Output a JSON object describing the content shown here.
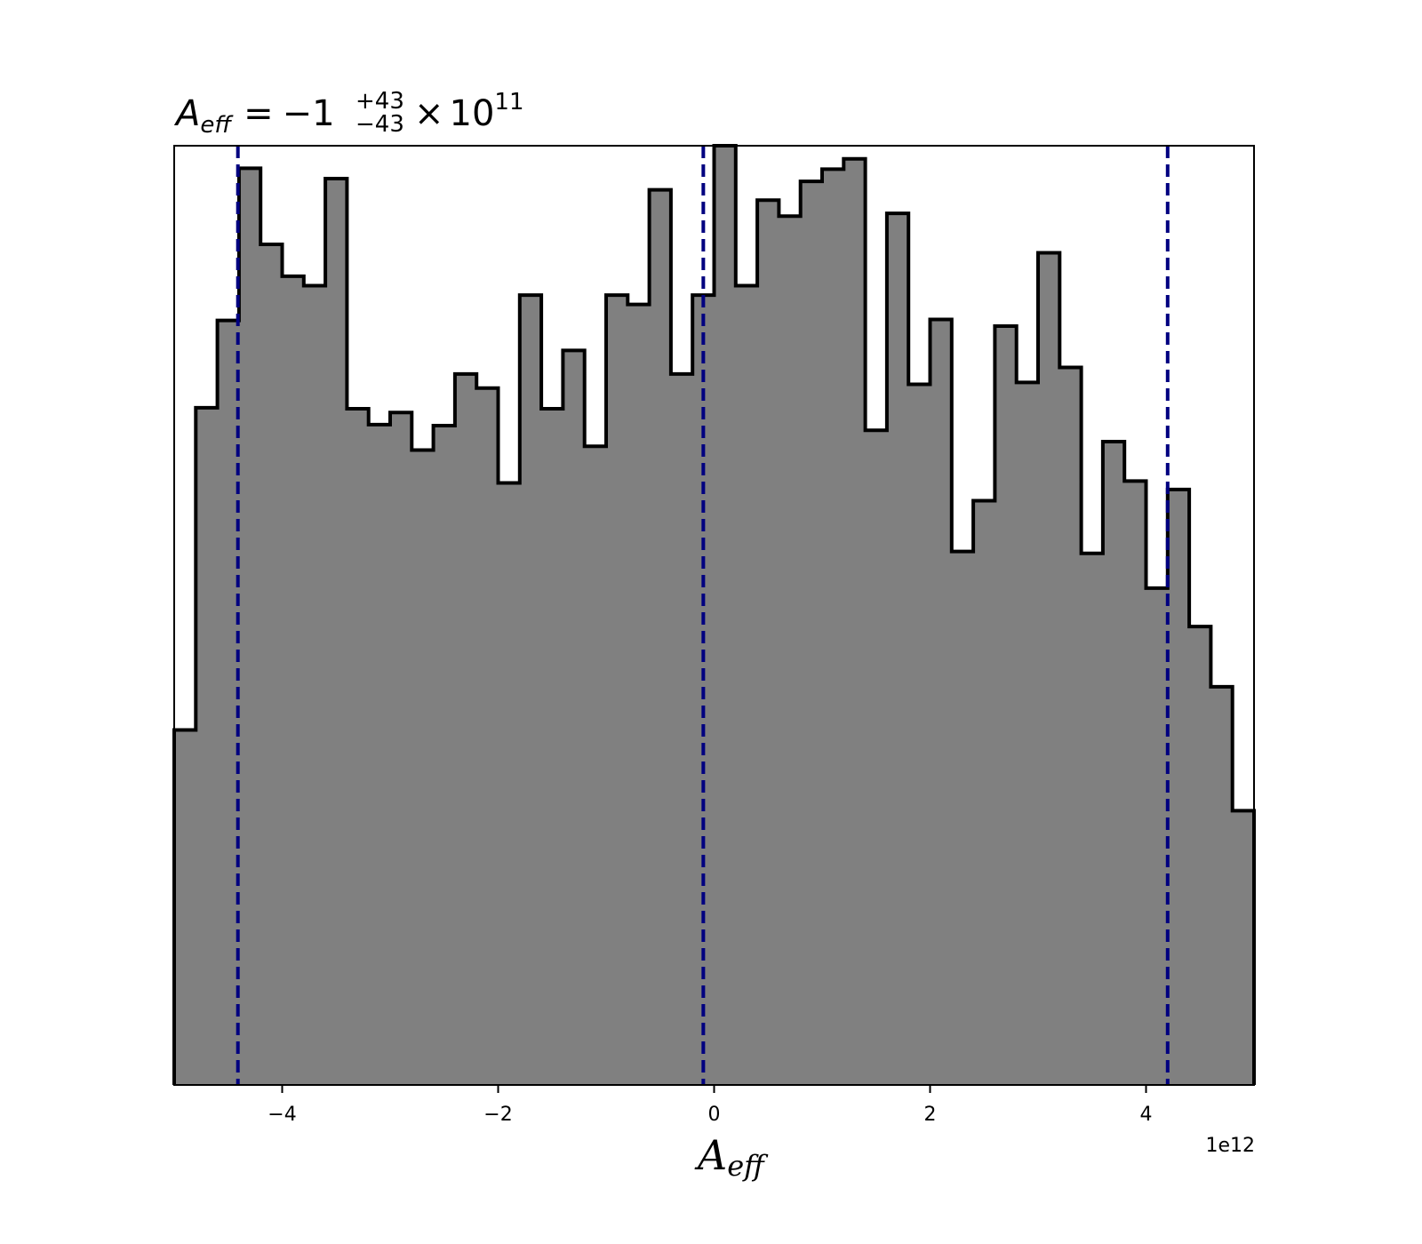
{
  "chart_data": {
    "type": "histogram",
    "title": {
      "symbol": "A",
      "symbol_subscript": "eff",
      "equals": "=",
      "value": "−1",
      "upper_error": "+43",
      "lower_error": "−43",
      "multiplier": "×",
      "power_base": "10",
      "exponent": "11"
    },
    "xlabel": {
      "symbol": "A",
      "subscript": "eff"
    },
    "ylabel": "",
    "offset_label": "1e12",
    "xlim": [
      -5.0,
      5.0
    ],
    "ylim": [
      0,
      1.0
    ],
    "x_scale_factor": 1000000000000.0,
    "xticks": [
      {
        "value": -4,
        "label": "−4"
      },
      {
        "value": -2,
        "label": "−2"
      },
      {
        "value": 0,
        "label": "0"
      },
      {
        "value": 2,
        "label": "2"
      },
      {
        "value": 4,
        "label": "4"
      }
    ],
    "show_yticks": false,
    "grid": false,
    "fill_color": "#808080",
    "edge_color": "#000000",
    "quantile_color": "#000080",
    "bin_edges": [
      -5.0,
      -4.8,
      -4.6,
      -4.4,
      -4.2,
      -4.0,
      -3.8,
      -3.6,
      -3.4,
      -3.2,
      -3.0,
      -2.8,
      -2.6,
      -2.4,
      -2.2,
      -2.0,
      -1.8,
      -1.6,
      -1.4,
      -1.2,
      -1.0,
      -0.8,
      -0.6,
      -0.4,
      -0.2,
      0.0,
      0.2,
      0.4,
      0.6,
      0.8,
      1.0,
      1.2,
      1.4,
      1.6,
      1.8,
      2.0,
      2.2,
      2.4,
      2.6,
      2.8,
      3.0,
      3.2,
      3.4,
      3.6,
      3.8,
      4.0,
      4.2,
      4.4,
      4.6,
      4.8,
      5.0
    ],
    "counts": [
      0.378,
      0.721,
      0.814,
      0.976,
      0.895,
      0.861,
      0.851,
      0.965,
      0.72,
      0.703,
      0.716,
      0.676,
      0.702,
      0.757,
      0.742,
      0.641,
      0.841,
      0.72,
      0.782,
      0.68,
      0.841,
      0.831,
      0.953,
      0.757,
      0.841,
      1.0,
      0.851,
      0.942,
      0.925,
      0.962,
      0.975,
      0.986,
      0.697,
      0.928,
      0.746,
      0.815,
      0.568,
      0.622,
      0.808,
      0.748,
      0.886,
      0.764,
      0.566,
      0.685,
      0.643,
      0.529,
      0.634,
      0.488,
      0.424,
      0.292
    ],
    "quantiles": [
      -4.41,
      -0.1,
      4.2
    ]
  }
}
